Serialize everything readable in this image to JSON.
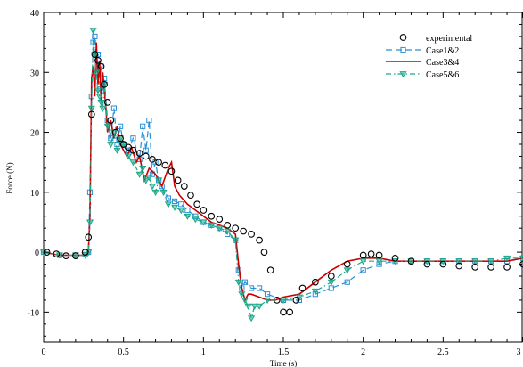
{
  "chart_data": {
    "type": "scatter",
    "xlabel": "Time (s)",
    "ylabel": "Force (N)",
    "xlim": [
      0,
      3
    ],
    "ylim": [
      -15,
      40
    ],
    "xticks": [
      0,
      0.5,
      1,
      1.5,
      2,
      2.5,
      3
    ],
    "xtick_labels": [
      "0",
      "0.5",
      "1",
      "1.5",
      "2",
      "2.5",
      "3"
    ],
    "yticks": [
      -10,
      0,
      10,
      20,
      30,
      40
    ],
    "ytick_labels": [
      "-10",
      "0",
      "10",
      "20",
      "30",
      "40"
    ],
    "grid": false,
    "legend_position": "top-right",
    "series": [
      {
        "name": "experimental",
        "color": "#000000",
        "style": "markers",
        "marker": "circle",
        "x": [
          0.02,
          0.08,
          0.14,
          0.2,
          0.26,
          0.28,
          0.3,
          0.32,
          0.34,
          0.36,
          0.38,
          0.4,
          0.42,
          0.45,
          0.48,
          0.5,
          0.53,
          0.56,
          0.6,
          0.64,
          0.68,
          0.72,
          0.76,
          0.8,
          0.84,
          0.88,
          0.92,
          0.96,
          1.0,
          1.05,
          1.1,
          1.15,
          1.2,
          1.25,
          1.3,
          1.35,
          1.38,
          1.42,
          1.46,
          1.5,
          1.54,
          1.58,
          1.62,
          1.7,
          1.8,
          1.9,
          2.0,
          2.05,
          2.1,
          2.2,
          2.3,
          2.4,
          2.5,
          2.6,
          2.7,
          2.8,
          2.9,
          3.0
        ],
        "y": [
          0,
          -0.3,
          -0.6,
          -0.6,
          0,
          2.5,
          23,
          33,
          32,
          31,
          28,
          25,
          22,
          20,
          19,
          18,
          17.5,
          17,
          16.5,
          16,
          15.5,
          15,
          14.5,
          13.5,
          12,
          11,
          9.5,
          8,
          7,
          6,
          5.5,
          4.5,
          4,
          3.5,
          3,
          2,
          0,
          -3,
          -8,
          -10,
          -10,
          -8,
          -6,
          -5,
          -4,
          -2,
          -0.5,
          -0.3,
          -0.5,
          -1,
          -1.5,
          -2,
          -2,
          -2.3,
          -2.5,
          -2.5,
          -2.5,
          -2
        ]
      },
      {
        "name": "Case1&2",
        "color": "#2b8fd6",
        "style": "dashed",
        "marker": "square",
        "x": [
          0,
          0.1,
          0.2,
          0.26,
          0.28,
          0.29,
          0.3,
          0.31,
          0.32,
          0.33,
          0.34,
          0.35,
          0.36,
          0.37,
          0.38,
          0.4,
          0.42,
          0.44,
          0.46,
          0.48,
          0.5,
          0.53,
          0.56,
          0.6,
          0.62,
          0.64,
          0.66,
          0.68,
          0.7,
          0.72,
          0.74,
          0.78,
          0.82,
          0.86,
          0.9,
          0.95,
          1.0,
          1.05,
          1.1,
          1.15,
          1.2,
          1.22,
          1.24,
          1.26,
          1.3,
          1.35,
          1.4,
          1.5,
          1.6,
          1.7,
          1.8,
          1.9,
          2.0,
          2.1,
          2.2,
          2.3,
          2.4,
          2.5,
          2.6,
          2.7,
          2.8,
          2.9,
          3.0
        ],
        "y": [
          0,
          -0.5,
          -0.5,
          -0.4,
          0,
          10,
          26,
          35,
          36,
          30,
          33,
          28,
          31,
          27,
          29,
          22,
          19,
          24,
          18,
          21,
          18,
          17,
          19,
          15.5,
          21,
          17,
          22,
          13,
          15,
          12,
          11,
          9,
          8.5,
          8,
          7,
          6,
          5,
          4.5,
          4,
          3,
          2,
          -3,
          -6,
          -5,
          -6,
          -6,
          -7,
          -8,
          -8,
          -7,
          -6,
          -5,
          -3,
          -2,
          -1.5,
          -1.5,
          -1.5,
          -1.5,
          -1.5,
          -1.5,
          -1.5,
          -1.5,
          -1
        ]
      },
      {
        "name": "Case3&4",
        "color": "#cc0000",
        "style": "solid",
        "marker": "none",
        "x": [
          0,
          0.1,
          0.2,
          0.26,
          0.28,
          0.29,
          0.3,
          0.31,
          0.32,
          0.33,
          0.34,
          0.35,
          0.36,
          0.37,
          0.38,
          0.39,
          0.4,
          0.42,
          0.44,
          0.46,
          0.48,
          0.5,
          0.52,
          0.55,
          0.58,
          0.6,
          0.63,
          0.66,
          0.7,
          0.74,
          0.78,
          0.8,
          0.82,
          0.85,
          0.9,
          0.95,
          1.0,
          1.05,
          1.1,
          1.15,
          1.2,
          1.22,
          1.24,
          1.26,
          1.28,
          1.3,
          1.35,
          1.4,
          1.45,
          1.5,
          1.6,
          1.7,
          1.8,
          1.9,
          2.0,
          2.1,
          2.2,
          2.3,
          2.4,
          2.5,
          2.6,
          2.7,
          2.8,
          2.9,
          3.0
        ],
        "y": [
          0,
          -0.5,
          -0.5,
          -0.5,
          0,
          6,
          29,
          31,
          26,
          35,
          28,
          32,
          25,
          30,
          27,
          24,
          20,
          22,
          19,
          21,
          18,
          17,
          16,
          17.5,
          15,
          16,
          12,
          14,
          13,
          11,
          14,
          15,
          11,
          9.5,
          8,
          7,
          6,
          5,
          4.5,
          4,
          3,
          -2,
          -6,
          -8,
          -7,
          -7,
          -7.5,
          -8,
          -8,
          -7.5,
          -7,
          -5,
          -3,
          -1.5,
          -1,
          -1,
          -1.5,
          -1.5,
          -1.5,
          -1.5,
          -1.5,
          -1.5,
          -1.5,
          -1.5,
          -1
        ]
      },
      {
        "name": "Case5&6",
        "color": "#1aa88a",
        "style": "dash-dot",
        "marker": "triangle-down",
        "x": [
          0,
          0.1,
          0.2,
          0.26,
          0.28,
          0.29,
          0.3,
          0.31,
          0.32,
          0.33,
          0.34,
          0.35,
          0.36,
          0.37,
          0.38,
          0.4,
          0.42,
          0.44,
          0.46,
          0.48,
          0.5,
          0.53,
          0.56,
          0.6,
          0.62,
          0.64,
          0.66,
          0.68,
          0.7,
          0.72,
          0.75,
          0.78,
          0.82,
          0.86,
          0.9,
          0.95,
          1.0,
          1.05,
          1.1,
          1.15,
          1.2,
          1.22,
          1.24,
          1.26,
          1.28,
          1.3,
          1.32,
          1.35,
          1.4,
          1.5,
          1.6,
          1.7,
          1.8,
          1.9,
          2.0,
          2.1,
          2.2,
          2.3,
          2.4,
          2.5,
          2.6,
          2.7,
          2.8,
          2.9,
          3.0
        ],
        "y": [
          0,
          -0.5,
          -0.5,
          -0.5,
          0,
          5,
          24,
          37,
          33,
          30,
          27,
          26,
          25,
          24,
          28,
          21,
          18,
          20,
          17,
          19,
          18,
          16,
          15,
          13,
          14,
          12,
          12.5,
          11,
          10,
          12,
          10,
          8,
          7.5,
          7,
          6,
          5.5,
          5,
          4.5,
          4,
          3.5,
          2,
          -5,
          -7,
          -8,
          -9,
          -11,
          -9,
          -9,
          -8,
          -8,
          -7.5,
          -6.5,
          -5,
          -3,
          -1.5,
          -1.5,
          -1.5,
          -1.5,
          -1.5,
          -1.5,
          -1.5,
          -1.5,
          -1.5,
          -1,
          -1
        ]
      }
    ]
  }
}
